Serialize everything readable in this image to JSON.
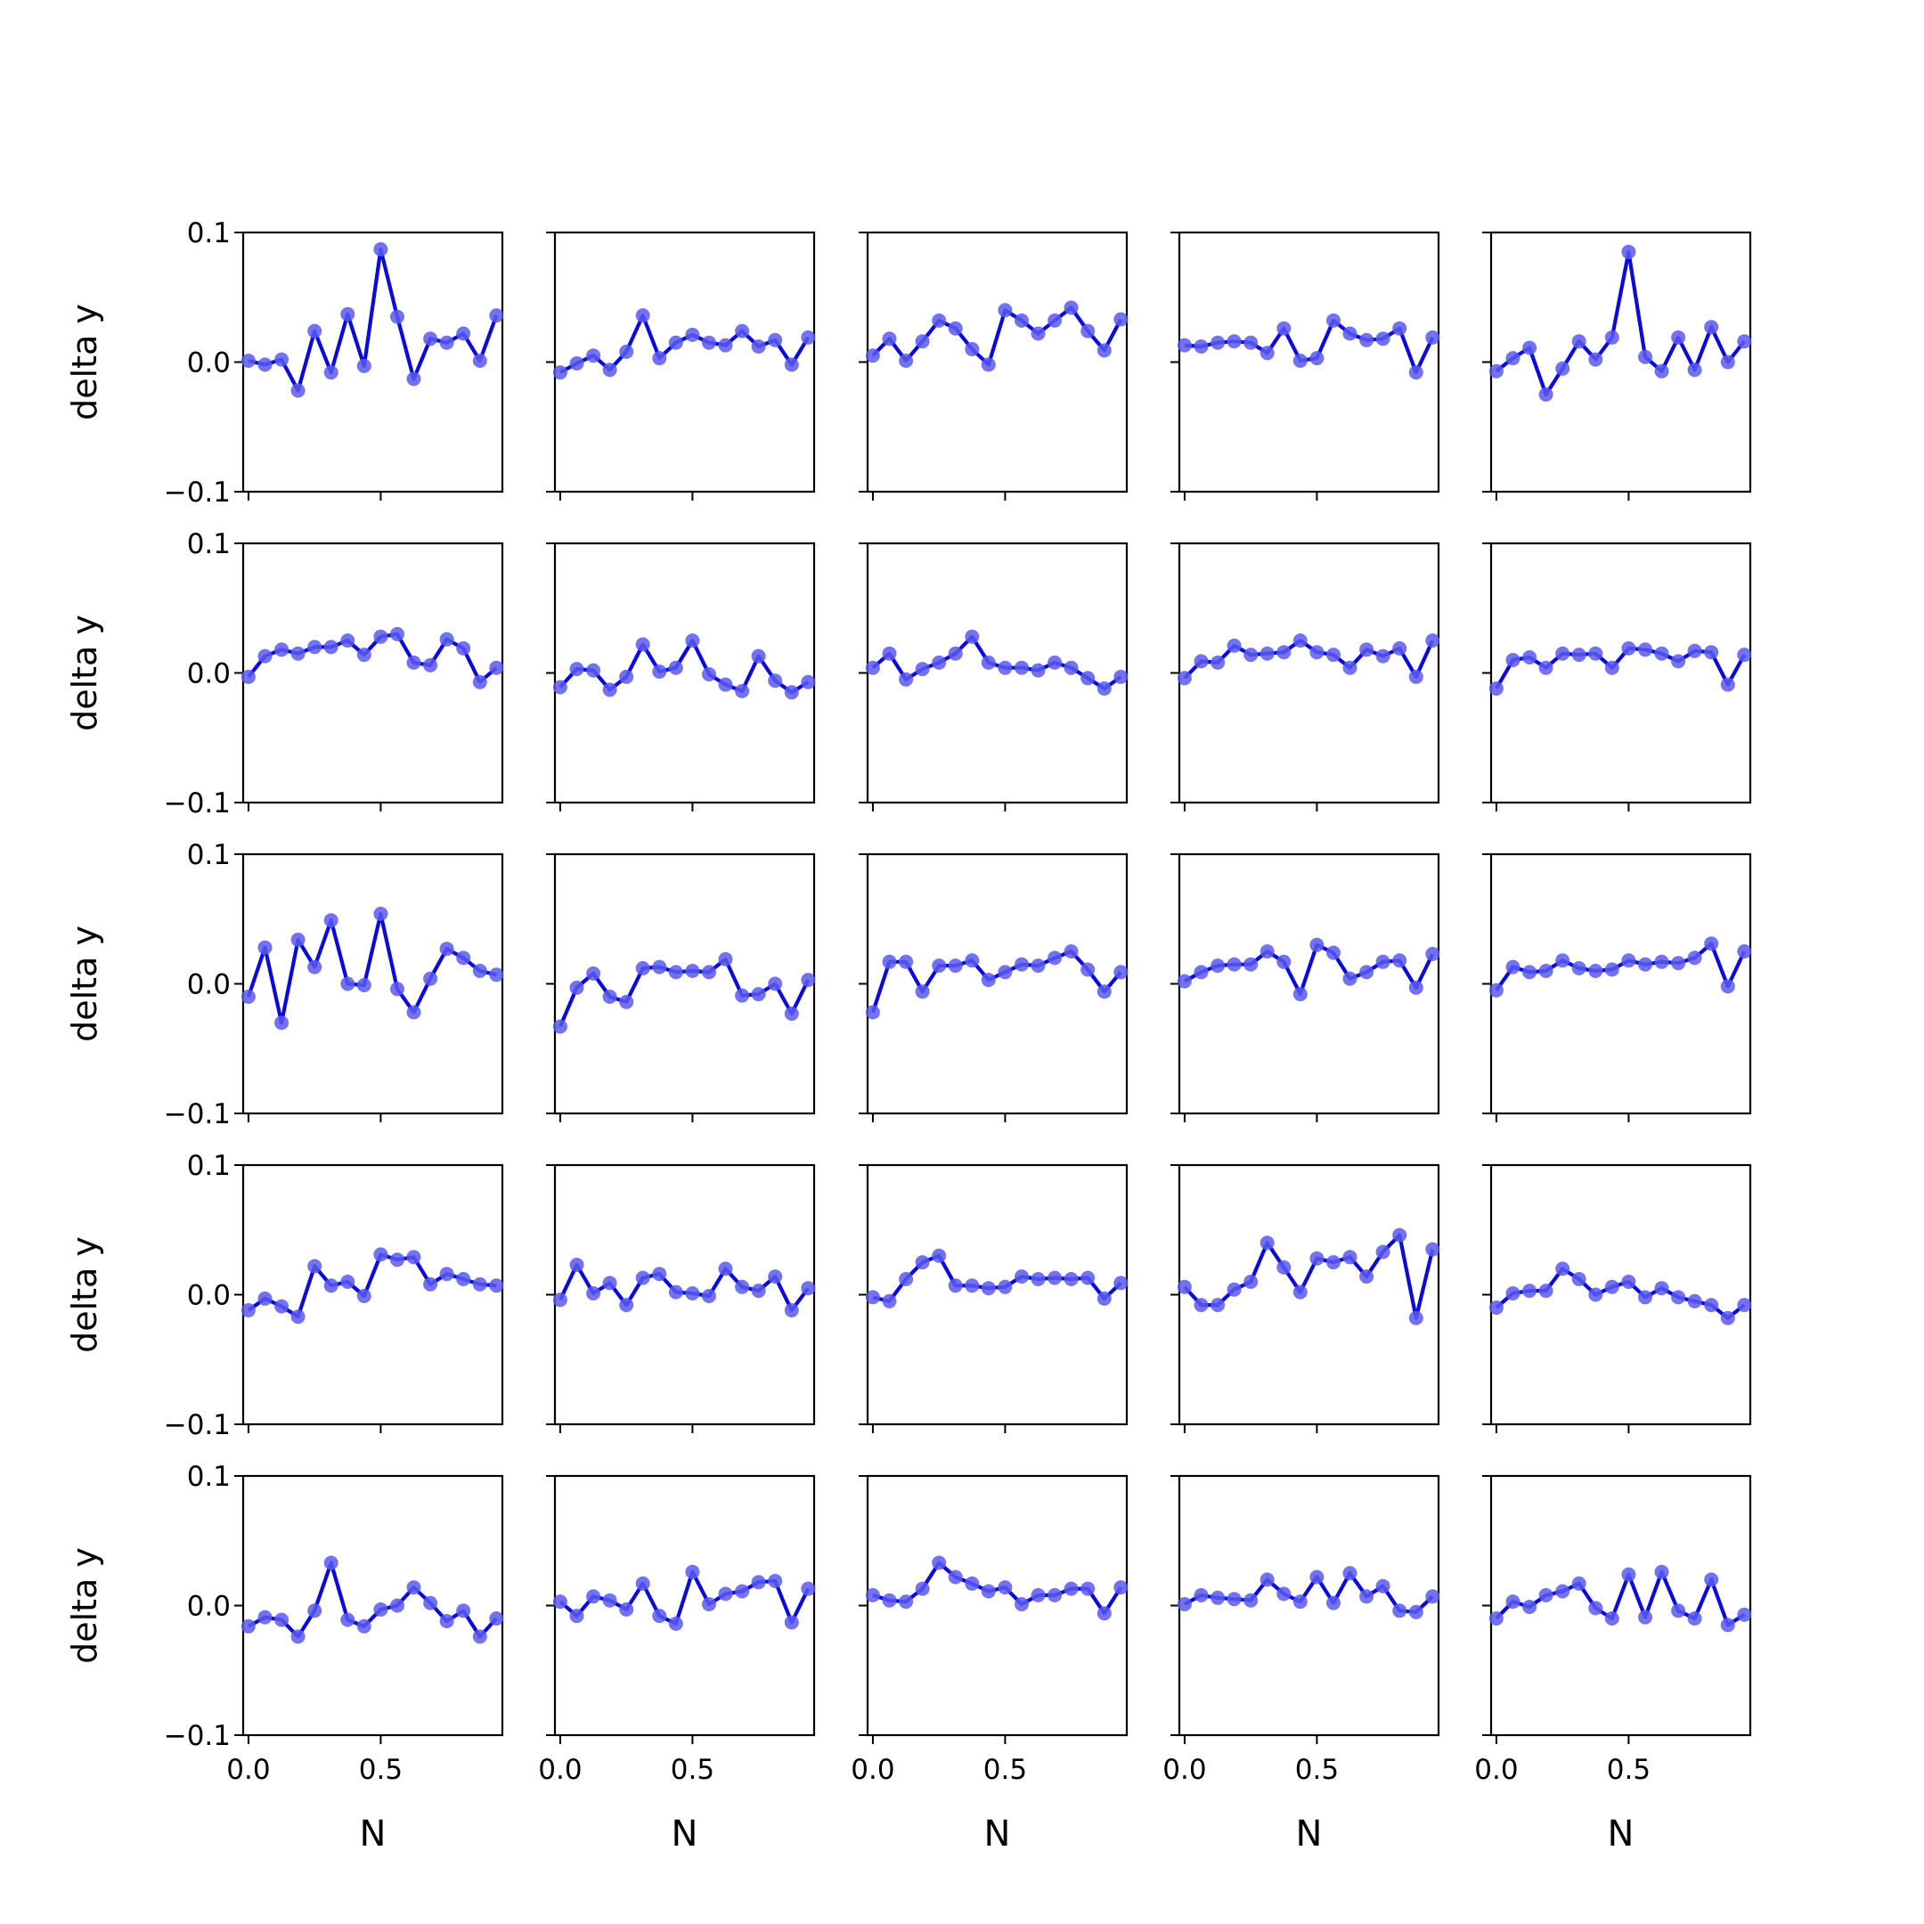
{
  "chart_data": {
    "type": "line",
    "layout": "5x5 grid of small multiples",
    "xlabel": "N",
    "ylabel": "delta y",
    "xlim": [
      -0.02,
      0.96
    ],
    "ylim": [
      -0.1,
      0.1
    ],
    "xticks": [
      0.0,
      0.5
    ],
    "xtick_labels": [
      "0.0",
      "0.5"
    ],
    "yticks": [
      -0.1,
      0.0,
      0.1
    ],
    "ytick_labels": [
      "−0.1",
      "0.0",
      "0.1"
    ],
    "line_color": "#0a0ae0",
    "marker_color": "#5a5aee",
    "grid": false,
    "x": [
      0.0,
      0.0625,
      0.125,
      0.1875,
      0.25,
      0.3125,
      0.375,
      0.4375,
      0.5,
      0.5625,
      0.625,
      0.6875,
      0.75,
      0.8125,
      0.875,
      0.9375
    ],
    "panels": [
      {
        "values": [
          0.001,
          -0.002,
          0.002,
          -0.022,
          0.024,
          -0.008,
          0.037,
          -0.003,
          0.087,
          0.035,
          -0.013,
          0.018,
          0.015,
          0.022,
          0.001,
          0.036
        ]
      },
      {
        "values": [
          -0.008,
          -0.001,
          0.005,
          -0.006,
          0.008,
          0.036,
          0.003,
          0.015,
          0.021,
          0.015,
          0.013,
          0.024,
          0.012,
          0.017,
          -0.002,
          0.019
        ]
      },
      {
        "values": [
          0.005,
          0.018,
          0.001,
          0.016,
          0.032,
          0.026,
          0.01,
          -0.002,
          0.04,
          0.032,
          0.022,
          0.032,
          0.042,
          0.024,
          0.009,
          0.033
        ]
      },
      {
        "values": [
          0.013,
          0.012,
          0.015,
          0.016,
          0.015,
          0.007,
          0.026,
          0.001,
          0.003,
          0.032,
          0.022,
          0.017,
          0.018,
          0.026,
          -0.008,
          0.019
        ]
      },
      {
        "values": [
          -0.007,
          0.003,
          0.011,
          -0.025,
          -0.005,
          0.016,
          0.002,
          0.019,
          0.085,
          0.004,
          -0.007,
          0.019,
          -0.006,
          0.027,
          0.0,
          0.016
        ]
      },
      {
        "values": [
          -0.003,
          0.013,
          0.018,
          0.015,
          0.02,
          0.02,
          0.025,
          0.014,
          0.028,
          0.03,
          0.008,
          0.006,
          0.026,
          0.019,
          -0.007,
          0.004
        ]
      },
      {
        "values": [
          -0.011,
          0.003,
          0.002,
          -0.013,
          -0.003,
          0.022,
          0.001,
          0.004,
          0.025,
          -0.001,
          -0.009,
          -0.014,
          0.013,
          -0.006,
          -0.015,
          -0.007
        ]
      },
      {
        "values": [
          0.004,
          0.015,
          -0.005,
          0.003,
          0.008,
          0.015,
          0.028,
          0.008,
          0.004,
          0.004,
          0.002,
          0.008,
          0.004,
          -0.004,
          -0.012,
          -0.003
        ]
      },
      {
        "values": [
          -0.004,
          0.009,
          0.008,
          0.021,
          0.014,
          0.015,
          0.016,
          0.025,
          0.016,
          0.014,
          0.004,
          0.018,
          0.013,
          0.019,
          -0.003,
          0.025
        ]
      },
      {
        "values": [
          -0.012,
          0.01,
          0.012,
          0.004,
          0.015,
          0.014,
          0.015,
          0.004,
          0.019,
          0.018,
          0.015,
          0.009,
          0.017,
          0.016,
          -0.009,
          0.014
        ]
      },
      {
        "values": [
          -0.01,
          0.028,
          -0.03,
          0.034,
          0.013,
          0.049,
          0.0,
          -0.001,
          0.054,
          -0.004,
          -0.022,
          0.004,
          0.027,
          0.02,
          0.01,
          0.007
        ]
      },
      {
        "values": [
          -0.033,
          -0.003,
          0.008,
          -0.01,
          -0.014,
          0.012,
          0.013,
          0.009,
          0.01,
          0.009,
          0.019,
          -0.009,
          -0.008,
          0.0,
          -0.023,
          0.003
        ]
      },
      {
        "values": [
          -0.022,
          0.017,
          0.017,
          -0.006,
          0.014,
          0.014,
          0.018,
          0.003,
          0.009,
          0.015,
          0.014,
          0.02,
          0.025,
          0.011,
          -0.006,
          0.009
        ]
      },
      {
        "values": [
          0.002,
          0.009,
          0.014,
          0.015,
          0.015,
          0.025,
          0.017,
          -0.008,
          0.03,
          0.024,
          0.004,
          0.009,
          0.017,
          0.018,
          -0.003,
          0.023
        ]
      },
      {
        "values": [
          -0.005,
          0.013,
          0.009,
          0.01,
          0.018,
          0.012,
          0.01,
          0.011,
          0.018,
          0.015,
          0.017,
          0.016,
          0.02,
          0.031,
          -0.002,
          0.025
        ]
      },
      {
        "values": [
          -0.012,
          -0.003,
          -0.009,
          -0.017,
          0.022,
          0.007,
          0.01,
          -0.001,
          0.031,
          0.027,
          0.029,
          0.008,
          0.016,
          0.012,
          0.008,
          0.007
        ]
      },
      {
        "values": [
          -0.004,
          0.023,
          0.001,
          0.009,
          -0.008,
          0.013,
          0.016,
          0.002,
          0.001,
          -0.001,
          0.02,
          0.006,
          0.003,
          0.014,
          -0.012,
          0.005
        ]
      },
      {
        "values": [
          -0.002,
          -0.005,
          0.012,
          0.025,
          0.03,
          0.007,
          0.007,
          0.005,
          0.006,
          0.014,
          0.012,
          0.013,
          0.012,
          0.013,
          -0.003,
          0.009
        ]
      },
      {
        "values": [
          0.006,
          -0.008,
          -0.008,
          0.004,
          0.01,
          0.04,
          0.021,
          0.002,
          0.028,
          0.025,
          0.029,
          0.014,
          0.033,
          0.046,
          -0.018,
          0.035
        ]
      },
      {
        "values": [
          -0.01,
          0.001,
          0.003,
          0.003,
          0.02,
          0.012,
          0.0,
          0.006,
          0.01,
          -0.002,
          0.005,
          -0.002,
          -0.005,
          -0.008,
          -0.018,
          -0.008
        ]
      },
      {
        "values": [
          -0.016,
          -0.009,
          -0.011,
          -0.024,
          -0.004,
          0.033,
          -0.011,
          -0.016,
          -0.003,
          0.0,
          0.014,
          0.002,
          -0.012,
          -0.004,
          -0.024,
          -0.01
        ]
      },
      {
        "values": [
          0.003,
          -0.008,
          0.007,
          0.004,
          -0.003,
          0.017,
          -0.008,
          -0.014,
          0.026,
          0.001,
          0.009,
          0.011,
          0.018,
          0.019,
          -0.013,
          0.013
        ]
      },
      {
        "values": [
          0.008,
          0.004,
          0.003,
          0.013,
          0.033,
          0.022,
          0.017,
          0.011,
          0.014,
          0.001,
          0.008,
          0.008,
          0.013,
          0.013,
          -0.006,
          0.014
        ]
      },
      {
        "values": [
          0.001,
          0.008,
          0.006,
          0.005,
          0.004,
          0.02,
          0.009,
          0.003,
          0.022,
          0.002,
          0.025,
          0.007,
          0.015,
          -0.004,
          -0.005,
          0.007
        ]
      },
      {
        "values": [
          -0.01,
          0.003,
          -0.001,
          0.008,
          0.011,
          0.017,
          -0.002,
          -0.01,
          0.024,
          -0.009,
          0.026,
          -0.004,
          -0.01,
          0.02,
          -0.015,
          -0.007
        ]
      }
    ]
  }
}
